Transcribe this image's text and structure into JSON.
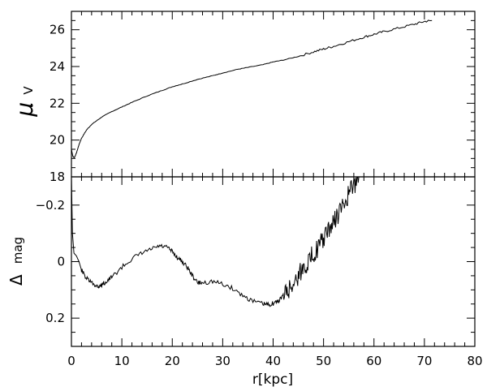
{
  "chart_data": [
    {
      "id": "top",
      "type": "line",
      "title": "",
      "ylabel_symbol": "μ",
      "ylabel_subscript": "V",
      "xlabel": "",
      "xlim": [
        0,
        80
      ],
      "ylim": [
        27,
        18
      ],
      "y_inverted": true,
      "yticks": [
        18,
        20,
        22,
        24,
        26
      ],
      "yticks_minor_step": 0.5,
      "ytick_labels": [
        "18",
        "20",
        "22",
        "24",
        "26"
      ],
      "xticks_minor_step": 2,
      "grid": false,
      "series": [
        {
          "x": [
            0,
            0.3,
            0.6,
            1,
            1.5,
            2,
            3,
            4,
            5,
            6,
            8,
            10,
            12,
            15,
            18,
            20,
            22,
            25,
            28,
            30,
            33,
            35,
            38,
            40,
            42,
            45,
            48,
            50,
            52,
            55,
            58,
            60,
            62,
            65,
            68,
            70,
            71.5
          ],
          "y": [
            19.5,
            19.1,
            19.05,
            19.3,
            19.75,
            20.1,
            20.55,
            20.85,
            21.05,
            21.25,
            21.55,
            21.8,
            22.05,
            22.4,
            22.7,
            22.9,
            23.05,
            23.3,
            23.5,
            23.65,
            23.85,
            23.95,
            24.1,
            24.25,
            24.35,
            24.55,
            24.8,
            24.95,
            25.1,
            25.35,
            25.6,
            25.75,
            25.9,
            26.1,
            26.3,
            26.45,
            26.5
          ]
        }
      ]
    },
    {
      "id": "bottom",
      "type": "line",
      "title": "",
      "ylabel_symbol": "Δ",
      "ylabel_subscript": "mag",
      "xlabel": "r[kpc]",
      "xlim": [
        0,
        80
      ],
      "ylim": [
        -0.3,
        0.3
      ],
      "yticks": [
        -0.2,
        0,
        0.2
      ],
      "yticks_minor_step": 0.05,
      "ytick_labels": [
        "−0.2",
        "0",
        "0.2"
      ],
      "xticks": [
        0,
        10,
        20,
        30,
        40,
        50,
        60,
        70,
        80
      ],
      "xtick_labels": [
        "0",
        "10",
        "20",
        "30",
        "40",
        "50",
        "60",
        "70",
        "80"
      ],
      "xticks_minor_step": 2,
      "grid": false,
      "series": [
        {
          "x": [
            0,
            0.2,
            0.5,
            1,
            1.5,
            2,
            3,
            4,
            5,
            5.5,
            6,
            7,
            8,
            10,
            12,
            14,
            16,
            17.5,
            19,
            20,
            21,
            22,
            23,
            24,
            25,
            26,
            28,
            30,
            32,
            34,
            36,
            38,
            39,
            40,
            41,
            42,
            43,
            44,
            45,
            46,
            47,
            48,
            49,
            50,
            51,
            52,
            53,
            54,
            55,
            56,
            57
          ],
          "y": [
            -0.3,
            -0.1,
            -0.03,
            -0.02,
            0.0,
            0.03,
            0.06,
            0.075,
            0.085,
            0.088,
            0.082,
            0.07,
            0.055,
            0.02,
            -0.01,
            -0.03,
            -0.045,
            -0.055,
            -0.05,
            -0.035,
            -0.015,
            0.0,
            0.02,
            0.05,
            0.075,
            0.075,
            0.07,
            0.08,
            0.095,
            0.12,
            0.14,
            0.15,
            0.152,
            0.148,
            0.14,
            0.12,
            0.1,
            0.08,
            0.05,
            0.02,
            0.0,
            -0.03,
            -0.05,
            -0.08,
            -0.11,
            -0.14,
            -0.17,
            -0.2,
            -0.24,
            -0.27,
            -0.3
          ]
        }
      ]
    }
  ]
}
